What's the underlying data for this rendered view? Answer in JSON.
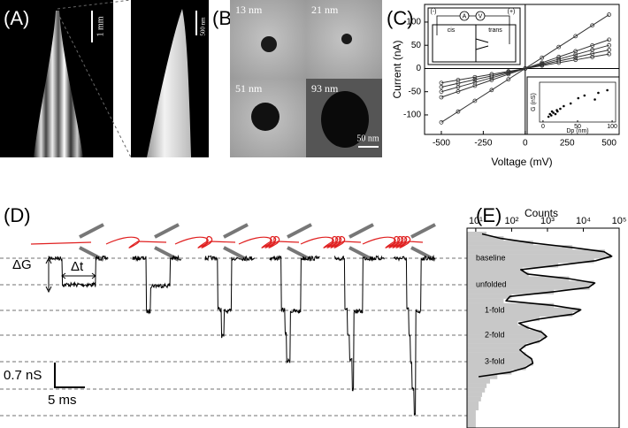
{
  "panel_labels": [
    "(A)",
    "(B)",
    "(C)",
    "(D)",
    "(E)"
  ],
  "panel_a": {
    "scale_main": "1 mm",
    "scale_zoom": "500 nm"
  },
  "panel_b": {
    "pores": [
      "13 nm",
      "21 nm",
      "51 nm",
      "93 nm"
    ],
    "scale": "50 nm"
  },
  "panel_d": {
    "delta_g": "ΔG",
    "delta_t": "Δt",
    "scale_y": "0.7 nS",
    "scale_x": "5 ms"
  },
  "chart_data": [
    {
      "type": "line",
      "x_label": "Voltage (mV)",
      "y_label": "Current (nA)",
      "x": [
        -500,
        -400,
        -300,
        -200,
        -100,
        0,
        100,
        200,
        300,
        400,
        500
      ],
      "series": [
        {
          "color": "#333333",
          "values": [
            -116,
            -92.8,
            -69.6,
            -46.4,
            -23.2,
            0,
            23.2,
            46.4,
            69.6,
            92.8,
            116
          ]
        },
        {
          "color": "#333333",
          "values": [
            -62,
            -49.6,
            -37.2,
            -24.8,
            -12.4,
            0,
            12.4,
            24.8,
            37.2,
            49.6,
            62
          ]
        },
        {
          "color": "#333333",
          "values": [
            -50,
            -40,
            -30,
            -20,
            -10,
            0,
            10,
            20,
            30,
            40,
            50
          ]
        },
        {
          "color": "#333333",
          "values": [
            -40,
            -32,
            -24,
            -16,
            -8,
            0,
            8,
            16,
            24,
            32,
            40
          ]
        },
        {
          "color": "#333333",
          "values": [
            -31,
            -24.8,
            -18.6,
            -12.4,
            -6.2,
            0,
            6.2,
            12.4,
            18.6,
            24.8,
            31
          ]
        }
      ],
      "xlim": [
        -600,
        560
      ],
      "ylim": [
        -142,
        138
      ],
      "xticks": [
        -500,
        -250,
        0,
        250,
        500
      ],
      "yticks": [
        -100,
        -50,
        0,
        50,
        100
      ],
      "inset_labels": [
        "(-)",
        "(+)",
        "A",
        "V",
        "cis",
        "trans"
      ]
    },
    {
      "type": "scatter",
      "x_label": "Dp (nm)",
      "y_label": "G (nS)",
      "x": [
        8,
        10,
        12,
        13,
        15,
        18,
        20,
        21,
        25,
        30,
        40,
        51,
        60,
        75,
        80,
        93
      ],
      "values": [
        4,
        6,
        5,
        8,
        7,
        6,
        9,
        8,
        10,
        12,
        14,
        18,
        20,
        17,
        22,
        24
      ],
      "xlim": [
        -5,
        105
      ],
      "ylim": [
        0,
        30
      ],
      "xticks": [
        0,
        50,
        100
      ]
    },
    {
      "type": "histogram",
      "x_label": "Counts",
      "log_x": true,
      "categories": [
        null,
        null,
        null,
        null,
        null,
        null,
        null,
        null,
        null,
        null,
        null,
        null,
        null,
        null,
        null,
        null,
        null,
        null,
        null,
        null,
        null,
        null,
        null,
        null,
        null,
        null,
        null,
        null,
        null,
        null,
        null,
        null,
        null,
        null,
        null,
        null,
        null,
        null,
        null,
        null,
        null,
        null,
        null,
        null
      ],
      "values": [
        20,
        60,
        400,
        5000,
        40000,
        60000,
        20000,
        2000,
        200,
        300,
        4000,
        20000,
        15000,
        1500,
        100,
        60,
        1500,
        8000,
        5000,
        600,
        150,
        300,
        700,
        900,
        600,
        250,
        180,
        250,
        350,
        400,
        250,
        100,
        40,
        25,
        20,
        18,
        15,
        14,
        12,
        12,
        10,
        10,
        10,
        10
      ],
      "fit": [
        15,
        50,
        350,
        4500,
        38000,
        62000,
        22000,
        2200,
        180,
        280,
        3800,
        21000,
        14000,
        1400,
        90,
        70,
        1400,
        8500,
        5200,
        650,
        160,
        280,
        680,
        950,
        620,
        240,
        170,
        240,
        360,
        390,
        240,
        90,
        12,
        null,
        null,
        null,
        null,
        null,
        null,
        null,
        null,
        null,
        null,
        null
      ],
      "color": "#c8c8c8",
      "fit_color": "#000000",
      "xlim": [
        5.7,
        100000
      ],
      "xticks": [
        {
          "value": 10,
          "label": "10¹"
        },
        {
          "value": 100,
          "label": "10²"
        },
        {
          "value": 1000,
          "label": "10³"
        },
        {
          "value": 10000,
          "label": "10⁴"
        },
        {
          "value": 100000,
          "label": "10⁵"
        }
      ],
      "levels": [
        "baseline",
        "unfolded",
        "1-fold",
        "2-fold",
        "3-fold"
      ]
    }
  ]
}
